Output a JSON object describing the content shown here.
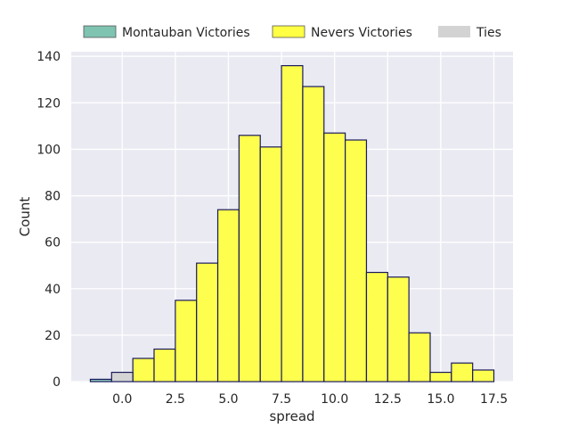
{
  "chart_data": {
    "type": "bar",
    "title": "",
    "xlabel": "spread",
    "ylabel": "Count",
    "xlim": [
      -2.4,
      18.4
    ],
    "ylim": [
      0,
      142
    ],
    "grid": true,
    "legend_position": "top",
    "x_ticks": [
      0.0,
      2.5,
      5.0,
      7.5,
      10.0,
      12.5,
      15.0,
      17.5
    ],
    "x_tick_labels": [
      "0.0",
      "2.5",
      "5.0",
      "7.5",
      "10.0",
      "12.5",
      "15.0",
      "17.5"
    ],
    "y_ticks": [
      0,
      20,
      40,
      60,
      80,
      100,
      120,
      140
    ],
    "y_tick_labels": [
      "0",
      "20",
      "40",
      "60",
      "80",
      "100",
      "120",
      "140"
    ],
    "bin_width": 1,
    "series": [
      {
        "name": "Montauban Victories",
        "color": "#7fc3b1",
        "bins": [
          {
            "start": -1.5,
            "count": 1
          }
        ]
      },
      {
        "name": "Nevers Victories",
        "color": "#ffff44",
        "bins": [
          {
            "start": 0.5,
            "count": 10
          },
          {
            "start": 1.5,
            "count": 14
          },
          {
            "start": 2.5,
            "count": 35
          },
          {
            "start": 3.5,
            "count": 51
          },
          {
            "start": 4.5,
            "count": 74
          },
          {
            "start": 5.5,
            "count": 106
          },
          {
            "start": 6.5,
            "count": 101
          },
          {
            "start": 7.5,
            "count": 136
          },
          {
            "start": 8.5,
            "count": 127
          },
          {
            "start": 9.5,
            "count": 107
          },
          {
            "start": 10.5,
            "count": 104
          },
          {
            "start": 11.5,
            "count": 47
          },
          {
            "start": 12.5,
            "count": 45
          },
          {
            "start": 13.5,
            "count": 21
          },
          {
            "start": 14.5,
            "count": 4
          },
          {
            "start": 15.5,
            "count": 8
          },
          {
            "start": 16.5,
            "count": 5
          }
        ]
      },
      {
        "name": "Ties",
        "color": "#d3d3d3",
        "bins": [
          {
            "start": -0.5,
            "count": 4
          }
        ]
      }
    ],
    "colors": {
      "plot_background": "#eaeaf2",
      "grid": "#ffffff",
      "bar_edge": "#1a1a5e"
    }
  }
}
